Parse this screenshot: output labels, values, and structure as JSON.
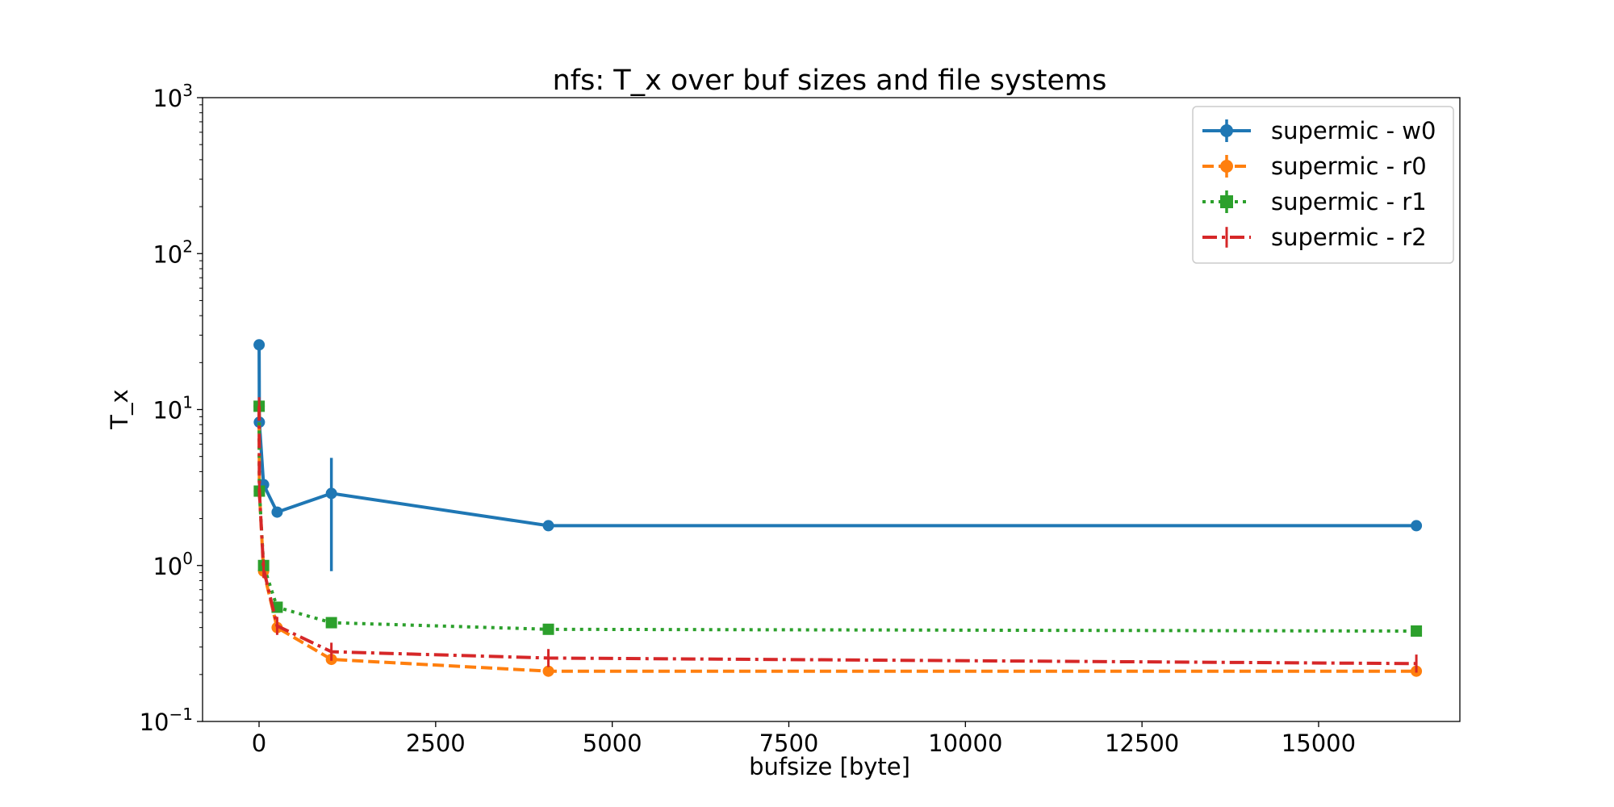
{
  "chart_data": {
    "type": "line",
    "title": "nfs: T_x over buf sizes and file systems",
    "xlabel": "bufsize [byte]",
    "ylabel": "T_x",
    "xlim": [
      -800,
      17000
    ],
    "ylim": [
      0.1,
      1000
    ],
    "yscale": "log",
    "grid": false,
    "legend_position": "top-right",
    "x_ticks": [
      0,
      2500,
      5000,
      7500,
      10000,
      12500,
      15000
    ],
    "y_ticks": [
      {
        "value": 0.1,
        "base": "10",
        "exp": "−1"
      },
      {
        "value": 1,
        "base": "10",
        "exp": "0"
      },
      {
        "value": 10,
        "base": "10",
        "exp": "1"
      },
      {
        "value": 100,
        "base": "10",
        "exp": "2"
      },
      {
        "value": 1000,
        "base": "10",
        "exp": "3"
      }
    ],
    "series": [
      {
        "name": "supermic - w0",
        "color": "#1f77b4",
        "linestyle": "solid",
        "marker": "circle",
        "x": [
          1,
          4,
          64,
          256,
          1024,
          4096,
          16384
        ],
        "y": [
          26,
          8.3,
          3.3,
          2.2,
          2.9,
          1.8,
          1.8
        ],
        "yerr_low": [
          26,
          8.3,
          3.3,
          2.2,
          0.92,
          1.8,
          1.8
        ],
        "yerr_high": [
          26,
          8.3,
          3.3,
          2.2,
          4.9,
          1.8,
          1.8
        ]
      },
      {
        "name": "supermic - r0",
        "color": "#ff7f0e",
        "linestyle": "dashed",
        "marker": "circle",
        "x": [
          1,
          4,
          64,
          256,
          1024,
          4096,
          16384
        ],
        "y": [
          10.5,
          3.0,
          0.92,
          0.4,
          0.25,
          0.21,
          0.21
        ]
      },
      {
        "name": "supermic - r1",
        "color": "#2ca02c",
        "linestyle": "dotted",
        "marker": "square",
        "x": [
          1,
          4,
          64,
          256,
          1024,
          4096,
          16384
        ],
        "y": [
          10.5,
          3.0,
          1.0,
          0.54,
          0.43,
          0.39,
          0.38
        ]
      },
      {
        "name": "supermic - r2",
        "color": "#d62728",
        "linestyle": "dashdot",
        "marker": "vline",
        "x": [
          1,
          4,
          64,
          256,
          1024,
          4096,
          16384
        ],
        "y": [
          10.5,
          3.0,
          0.95,
          0.41,
          0.28,
          0.255,
          0.235
        ]
      }
    ]
  }
}
